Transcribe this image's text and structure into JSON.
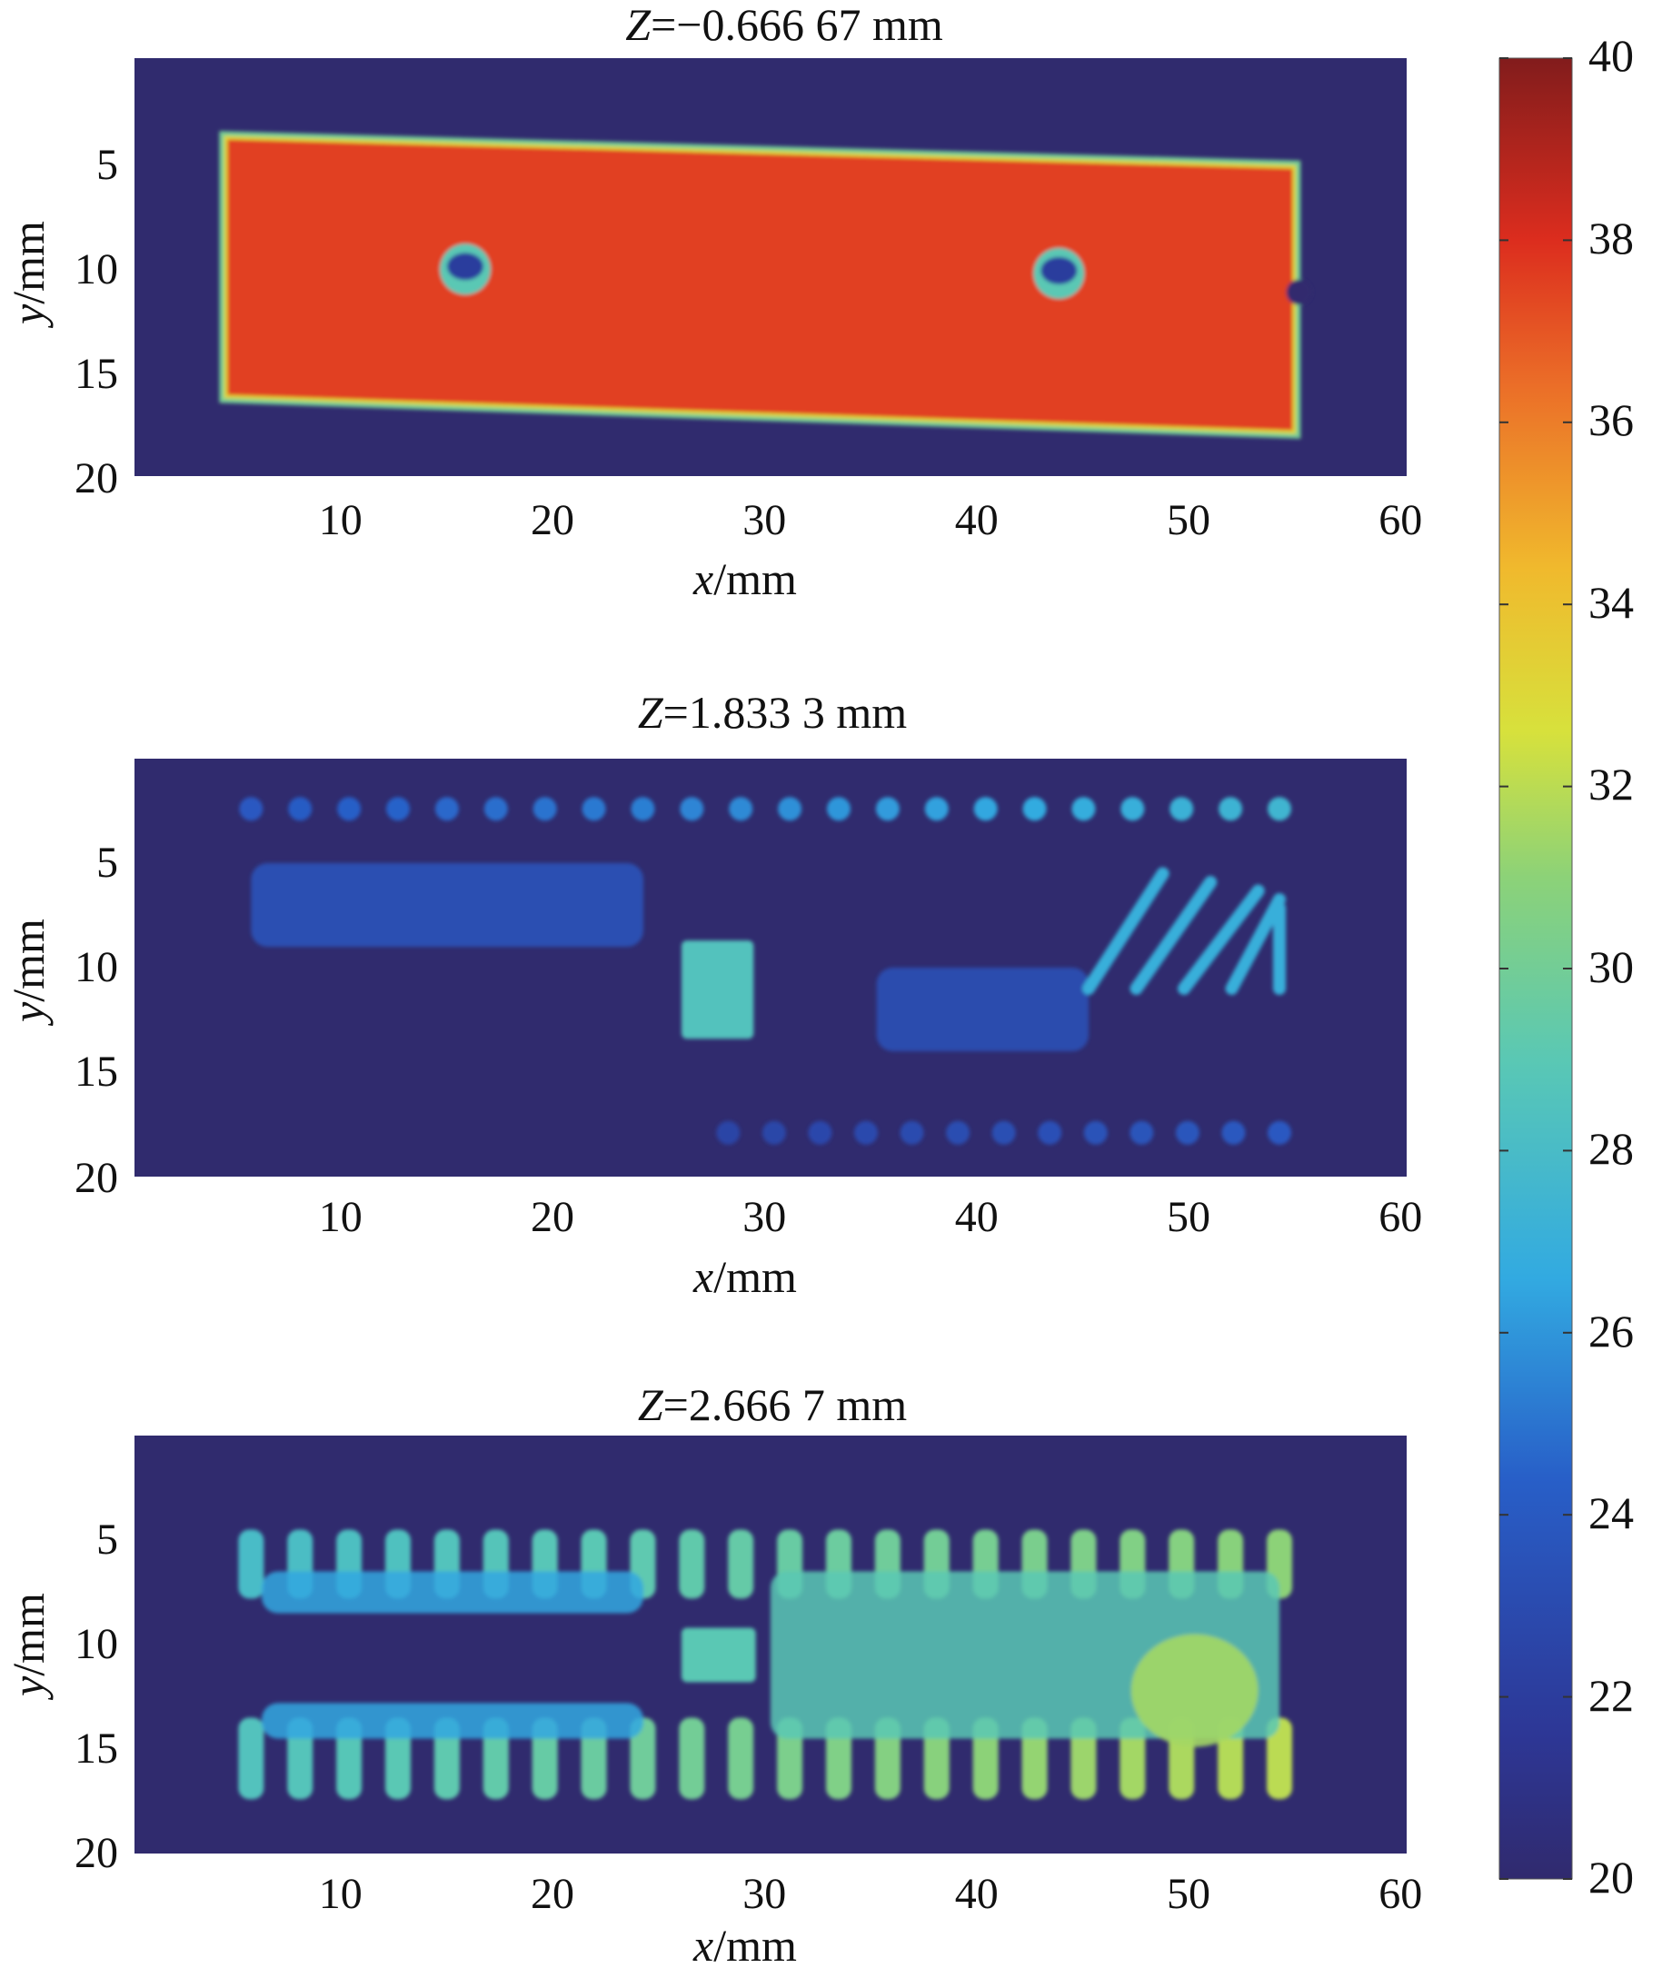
{
  "chart_data": {
    "type": "heatmap",
    "colormap": "jet",
    "colorbar": {
      "min": 20,
      "max": 40,
      "ticks": [
        20,
        22,
        24,
        26,
        28,
        30,
        32,
        34,
        36,
        38,
        40
      ],
      "tick_labels": [
        "20",
        "22",
        "24",
        "26",
        "28",
        "30",
        "32",
        "34",
        "36",
        "38",
        "40"
      ]
    },
    "panels": [
      {
        "title_var": "Z",
        "title_rest": "=−0.666 67 mm",
        "xlabel_var": "x",
        "xlabel_unit": "/mm",
        "ylabel_var": "y",
        "ylabel_unit": "/mm",
        "xlim": [
          0,
          60
        ],
        "ylim": [
          0,
          20
        ],
        "xticks": [
          10,
          20,
          30,
          40,
          50,
          60
        ],
        "xtick_labels": [
          "10",
          "20",
          "30",
          "40",
          "50",
          "60"
        ],
        "yticks": [
          5,
          10,
          15,
          20
        ],
        "ytick_labels": [
          "5",
          "10",
          "15",
          "20"
        ],
        "background_value": 20,
        "features": [
          {
            "kind": "plate",
            "value": 37.5,
            "corners": [
              [
                4.3,
                3.8
              ],
              [
                54.7,
                5.2
              ],
              [
                54.7,
                17.9
              ],
              [
                4.3,
                16.2
              ]
            ],
            "notch": [
              54.5,
              11.2
            ]
          },
          {
            "kind": "hole",
            "x": 15.6,
            "y": 10.1,
            "value": 22
          },
          {
            "kind": "hole",
            "x": 43.6,
            "y": 10.3,
            "value": 22
          }
        ]
      },
      {
        "title_var": "Z",
        "title_rest": "=1.833 3 mm",
        "xlabel_var": "x",
        "xlabel_unit": "/mm",
        "ylabel_var": "y",
        "ylabel_unit": "/mm",
        "xlim": [
          0,
          60
        ],
        "ylim": [
          0,
          20
        ],
        "xticks": [
          10,
          20,
          30,
          40,
          50,
          60
        ],
        "xtick_labels": [
          "10",
          "20",
          "30",
          "40",
          "50",
          "60"
        ],
        "yticks": [
          5,
          10,
          15,
          20
        ],
        "ytick_labels": [
          "5",
          "10",
          "15",
          "20"
        ],
        "background_value": 20,
        "features": [
          {
            "kind": "pin-row",
            "y": 2.4,
            "x_start": 5.5,
            "x_end": 54,
            "count": 22,
            "value_start": 24,
            "value_end": 27.5
          },
          {
            "kind": "pin-row",
            "y": 17.9,
            "x_start": 28,
            "x_end": 54,
            "count": 13,
            "value_start": 22.5,
            "value_end": 24
          },
          {
            "kind": "band",
            "x0": 5.5,
            "x1": 24,
            "y0": 5,
            "y1": 9,
            "value": 23.8
          },
          {
            "kind": "band",
            "x0": 35,
            "x1": 45,
            "y0": 10,
            "y1": 14,
            "value": 23.5
          },
          {
            "kind": "die",
            "x0": 25.8,
            "x1": 29.2,
            "y0": 8.7,
            "y1": 13.4,
            "value": 28.5
          },
          {
            "kind": "traces",
            "x0": 45,
            "x1": 54,
            "y0": 5.5,
            "y1": 11,
            "count": 5,
            "value": 27
          }
        ]
      },
      {
        "title_var": "Z",
        "title_rest": "=2.666 7 mm",
        "xlabel_var": "x",
        "xlabel_unit": "/mm",
        "ylabel_var": "y",
        "ylabel_unit": "/mm",
        "xlim": [
          0,
          60
        ],
        "ylim": [
          0,
          20
        ],
        "xticks": [
          10,
          20,
          30,
          40,
          50,
          60
        ],
        "xtick_labels": [
          "10",
          "20",
          "30",
          "40",
          "50",
          "60"
        ],
        "yticks": [
          5,
          10,
          15,
          20
        ],
        "ytick_labels": [
          "5",
          "10",
          "15",
          "20"
        ],
        "background_value": 20,
        "features": [
          {
            "kind": "lead-row",
            "y0": 4.5,
            "y1": 7.8,
            "x_start": 5.5,
            "x_end": 54,
            "count": 22,
            "value_start": 28,
            "value_end": 31
          },
          {
            "kind": "lead-row",
            "y0": 13.5,
            "y1": 17.4,
            "x_start": 5.5,
            "x_end": 54,
            "count": 22,
            "value_start": 28.5,
            "value_end": 32
          },
          {
            "kind": "band",
            "x0": 6,
            "x1": 24,
            "y0": 6.5,
            "y1": 8.5,
            "value": 26.5
          },
          {
            "kind": "band",
            "x0": 6,
            "x1": 24,
            "y0": 12.8,
            "y1": 14.5,
            "value": 26.5
          },
          {
            "kind": "band",
            "x0": 30,
            "x1": 54,
            "y0": 6.5,
            "y1": 14.5,
            "value": 29
          },
          {
            "kind": "die",
            "x0": 25.8,
            "x1": 29.3,
            "y0": 9.2,
            "y1": 11.8,
            "value": 29
          },
          {
            "kind": "hot-spot",
            "x": 50,
            "y": 12.2,
            "r": 3,
            "value": 31.5
          }
        ]
      }
    ]
  }
}
